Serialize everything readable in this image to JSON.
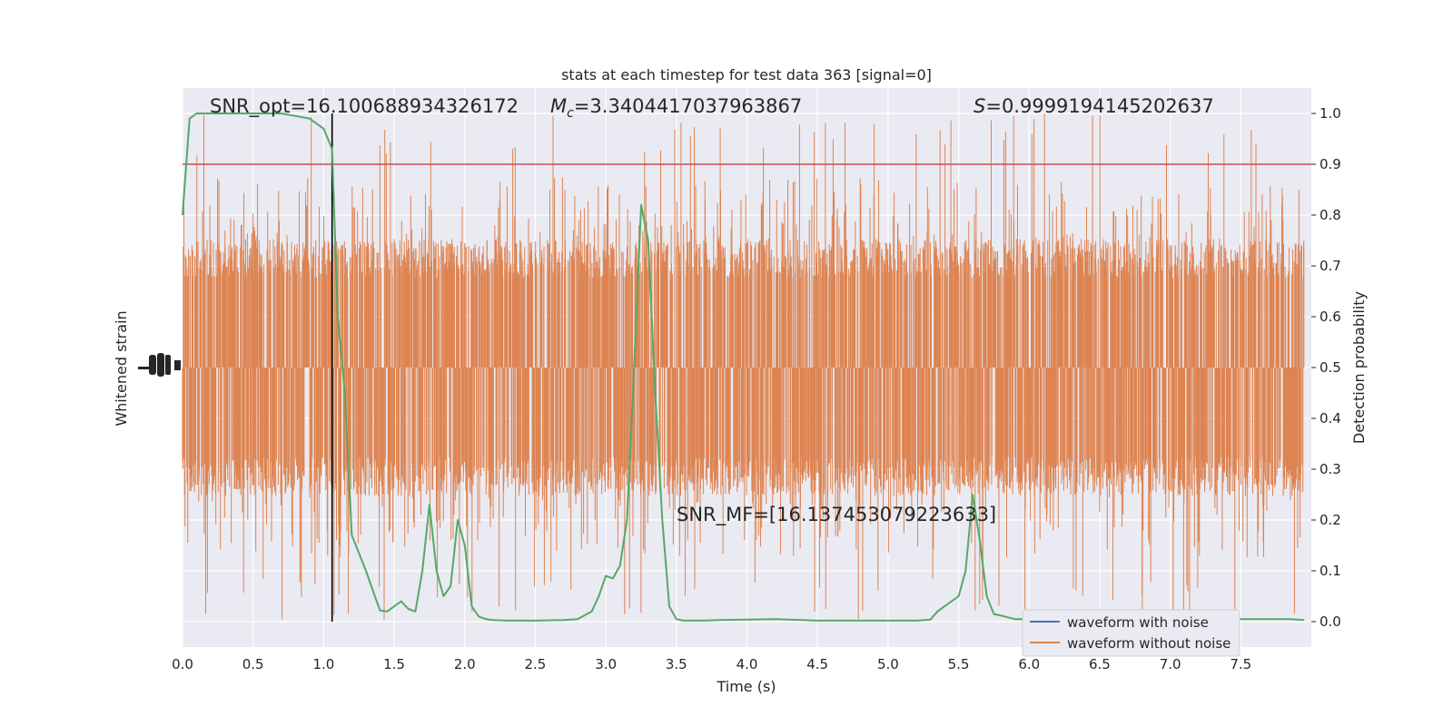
{
  "chart_data": {
    "type": "line",
    "title": "stats at each timestep for test data 363 [signal=0]",
    "xlabel": "Time (s)",
    "ylabel_left": "Whitened strain",
    "ylabel_right": "Detection probability",
    "xlim": [
      0,
      8
    ],
    "ylim_right": [
      -0.05,
      1.05
    ],
    "x_ticks": [
      "0.0",
      "0.5",
      "1.0",
      "1.5",
      "2.0",
      "2.5",
      "3.0",
      "3.5",
      "4.0",
      "4.5",
      "5.0",
      "5.5",
      "6.0",
      "6.5",
      "7.0",
      "7.5"
    ],
    "y_ticks_right": [
      "0.0",
      "0.1",
      "0.2",
      "0.3",
      "0.4",
      "0.5",
      "0.6",
      "0.7",
      "0.8",
      "0.9",
      "1.0"
    ],
    "grid": true,
    "legend_position": "bottom-right",
    "threshold_line": {
      "y": 0.9,
      "color": "#c44e52"
    },
    "marker_line": {
      "x": 1.06,
      "color": "#000000"
    },
    "annotations": {
      "snr_opt": "SNR_opt=16.100688934326172",
      "mc_symbol": "M",
      "mc_sub": "c",
      "mc_value": "=3.3404417037963867",
      "s_symbol": "S",
      "s_value": "=0.9999194145202637",
      "snr_mf": "SNR_MF=[16.137453079223633]"
    },
    "series": [
      {
        "name": "waveform with noise",
        "color": "#4c72b0",
        "x": [],
        "values": []
      },
      {
        "name": "waveform without noise",
        "color": "#dd8452",
        "type": "noise-band",
        "band_center": 0.5,
        "band_core": [
          0.28,
          0.72
        ],
        "band_extremes": [
          0.0,
          0.97
        ]
      },
      {
        "color": "#55a868",
        "x": [
          0,
          0.05,
          0.1,
          0.15,
          0.2,
          0.3,
          0.5,
          0.7,
          0.8,
          0.9,
          1.0,
          1.06,
          1.1,
          1.15,
          1.2,
          1.3,
          1.35,
          1.4,
          1.45,
          1.5,
          1.55,
          1.6,
          1.65,
          1.7,
          1.75,
          1.8,
          1.85,
          1.9,
          1.95,
          2.0,
          2.05,
          2.1,
          2.15,
          2.2,
          2.3,
          2.5,
          2.7,
          2.8,
          2.9,
          2.95,
          3.0,
          3.05,
          3.1,
          3.15,
          3.2,
          3.25,
          3.3,
          3.35,
          3.4,
          3.45,
          3.5,
          3.55,
          3.6,
          3.65,
          3.7,
          3.8,
          4.0,
          4.2,
          4.3,
          4.4,
          4.5,
          4.8,
          5.0,
          5.2,
          5.3,
          5.35,
          5.4,
          5.5,
          5.55,
          5.6,
          5.65,
          5.7,
          5.75,
          5.8,
          5.9,
          6.0,
          6.5,
          7.0,
          7.5,
          7.85,
          7.95
        ],
        "values": [
          0.8,
          0.99,
          1.0,
          1.0,
          1.0,
          1.0,
          1.0,
          1.0,
          0.995,
          0.99,
          0.97,
          0.93,
          0.6,
          0.45,
          0.17,
          0.1,
          0.06,
          0.022,
          0.02,
          0.03,
          0.04,
          0.025,
          0.02,
          0.1,
          0.23,
          0.1,
          0.05,
          0.07,
          0.2,
          0.15,
          0.03,
          0.01,
          0.005,
          0.003,
          0.002,
          0.002,
          0.003,
          0.005,
          0.02,
          0.05,
          0.09,
          0.085,
          0.11,
          0.2,
          0.5,
          0.82,
          0.75,
          0.45,
          0.2,
          0.03,
          0.005,
          0.002,
          0.002,
          0.002,
          0.002,
          0.003,
          0.004,
          0.005,
          0.004,
          0.003,
          0.002,
          0.002,
          0.002,
          0.002,
          0.004,
          0.02,
          0.03,
          0.05,
          0.1,
          0.25,
          0.16,
          0.05,
          0.015,
          0.012,
          0.005,
          0.005,
          0.004,
          0.004,
          0.005,
          0.005,
          0.003
        ]
      }
    ]
  }
}
